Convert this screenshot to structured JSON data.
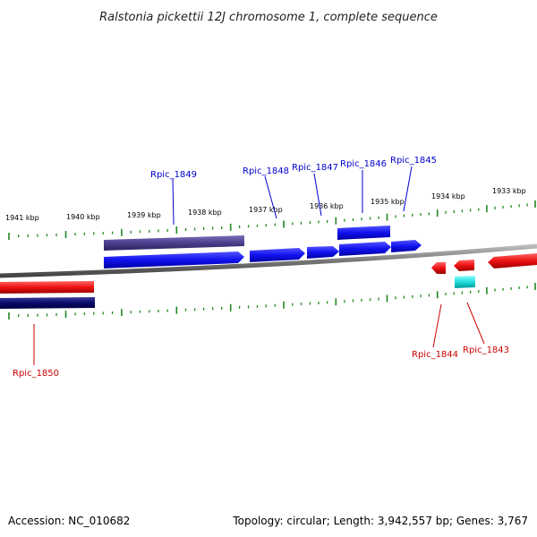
{
  "title": "Ralstonia pickettii 12J chromosome 1, complete sequence",
  "footer": {
    "accession": "Accession: NC_010682",
    "topology": "Topology: circular; Length: 3,942,557 bp; Genes: 3,767"
  },
  "ruler_top": [
    "1941 kbp",
    "1940 kbp",
    "1939 kbp",
    "1938 kbp",
    "1937 kbp",
    "1936 kbp",
    "1935 kbp",
    "1934 kbp",
    "1933 kbp"
  ],
  "genes": [
    {
      "label": "Rpic_1849",
      "color": "#0000cc"
    },
    {
      "label": "Rpic_1848",
      "color": "#0000cc"
    },
    {
      "label": "Rpic_1847",
      "color": "#0000cc"
    },
    {
      "label": "Rpic_1846",
      "color": "#0000cc"
    },
    {
      "label": "Rpic_1845",
      "color": "#0000cc"
    },
    {
      "label": "Rpic_1844",
      "color": "#cc0000"
    },
    {
      "label": "Rpic_1843",
      "color": "#cc0000"
    },
    {
      "label": "Rpic_1850",
      "color": "#cc0000"
    }
  ],
  "colors": {
    "forward_cds": "#1111ee",
    "forward_rna": "#4a3f8c",
    "reverse_cds": "#ee1111",
    "reverse_rna": "#0a0a6a",
    "reverse_misc": "#22dddd",
    "backbone": "#888888",
    "tick": "#228822"
  }
}
